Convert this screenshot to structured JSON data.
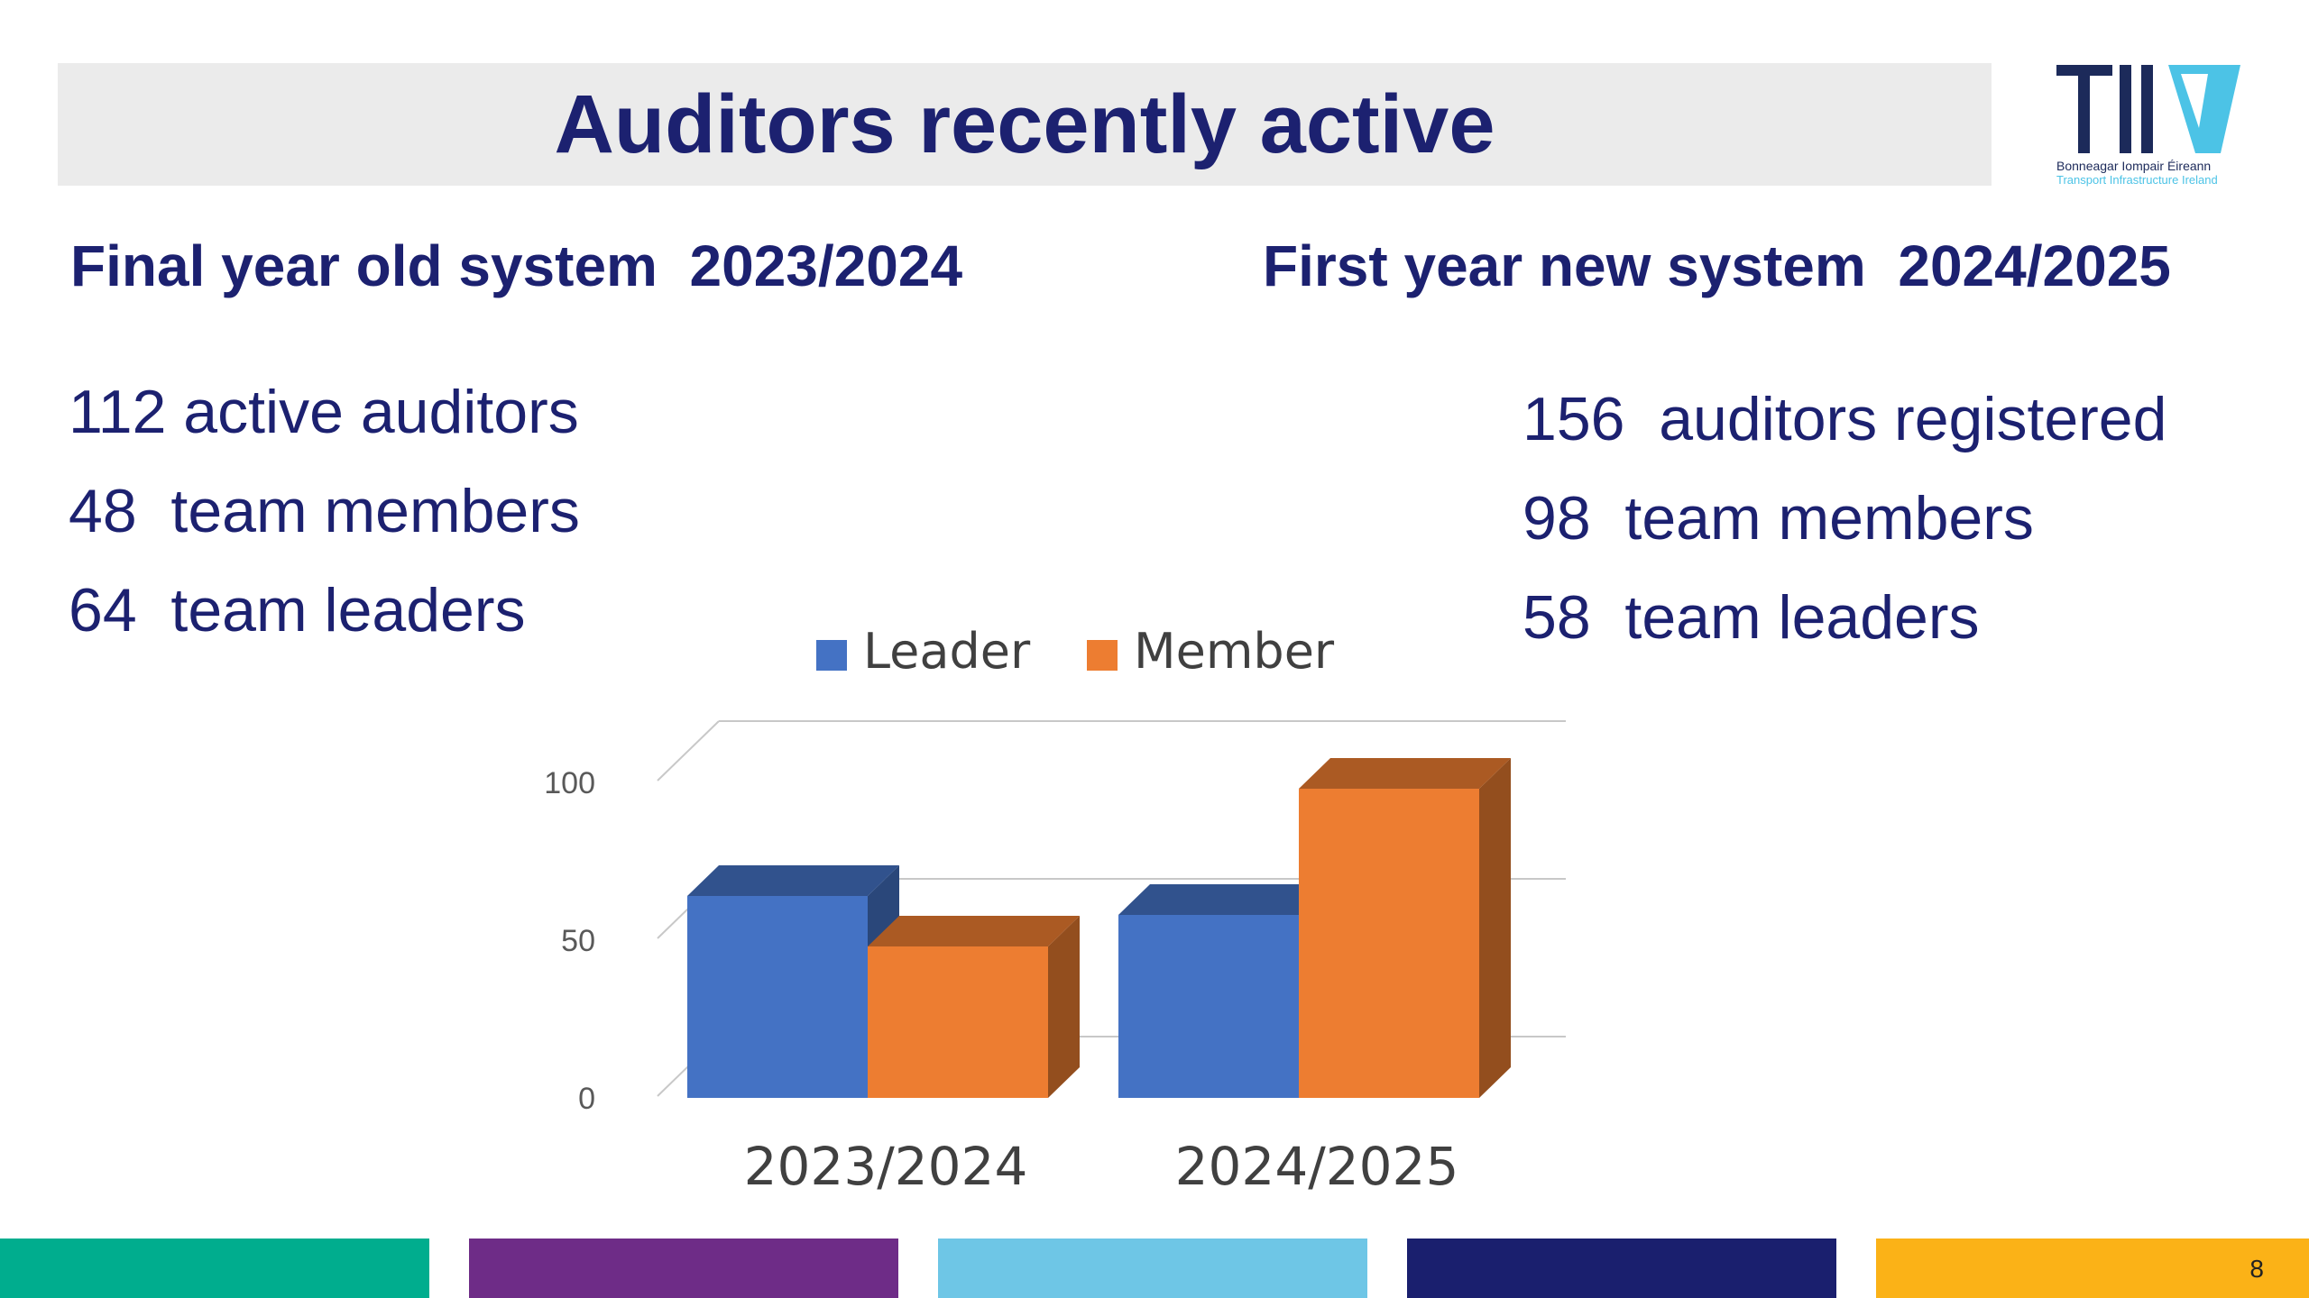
{
  "title": "Auditors recently active",
  "logo": {
    "text": "TII",
    "line1": "Bonneagar Iompair Éireann",
    "line2": "Transport Infrastructure Ireland"
  },
  "left": {
    "heading": "Final year old system  2023/2024",
    "stats": [
      "112 active auditors",
      "48  team members",
      "64  team leaders"
    ]
  },
  "right": {
    "heading": "First year new system  2024/2025",
    "stats": [
      "156  auditors registered",
      "98  team members",
      "58  team leaders"
    ]
  },
  "chart_data": {
    "type": "bar",
    "categories": [
      "2023/2024",
      "2024/2025"
    ],
    "series": [
      {
        "name": "Leader",
        "values": [
          64,
          58
        ],
        "color": "#4472c4"
      },
      {
        "name": "Member",
        "values": [
          48,
          98
        ],
        "color": "#ed7d31"
      }
    ],
    "yticks": [
      0,
      50,
      100
    ],
    "ylim": [
      0,
      100
    ],
    "legend": "top",
    "grid": true,
    "style": "3d-clustered"
  },
  "footer": {
    "stripe_colors": [
      "#00ad8e",
      "#6e2c87",
      "#6ec6e6",
      "#1a1f6e",
      "#fbb217"
    ],
    "page_number": "8"
  }
}
